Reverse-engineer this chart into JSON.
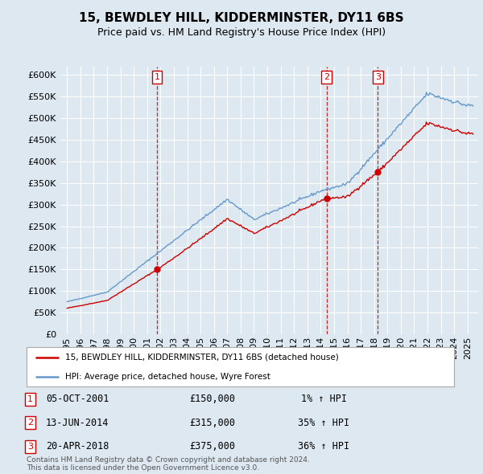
{
  "title": "15, BEWDLEY HILL, KIDDERMINSTER, DY11 6BS",
  "subtitle": "Price paid vs. HM Land Registry's House Price Index (HPI)",
  "ylim": [
    0,
    620000
  ],
  "yticks": [
    0,
    50000,
    100000,
    150000,
    200000,
    250000,
    300000,
    350000,
    400000,
    450000,
    500000,
    550000,
    600000
  ],
  "sale_prices": [
    150000,
    315000,
    375000
  ],
  "sale_labels": [
    "1",
    "2",
    "3"
  ],
  "sale_year_floats": [
    2001.75,
    2014.45,
    2018.29
  ],
  "sale_info": [
    {
      "num": "1",
      "date": "05-OCT-2001",
      "price": "£150,000",
      "hpi": "1% ↑ HPI"
    },
    {
      "num": "2",
      "date": "13-JUN-2014",
      "price": "£315,000",
      "hpi": "35% ↑ HPI"
    },
    {
      "num": "3",
      "date": "20-APR-2018",
      "price": "£375,000",
      "hpi": "36% ↑ HPI"
    }
  ],
  "red_line_color": "#cc0000",
  "blue_line_color": "#6699cc",
  "bg_color": "#dde8f0",
  "legend_label_red": "15, BEWDLEY HILL, KIDDERMINSTER, DY11 6BS (detached house)",
  "legend_label_blue": "HPI: Average price, detached house, Wyre Forest",
  "footer": "Contains HM Land Registry data © Crown copyright and database right 2024.\nThis data is licensed under the Open Government Licence v3.0."
}
